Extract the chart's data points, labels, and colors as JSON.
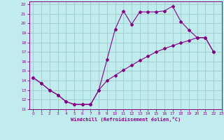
{
  "xlabel": "Windchill (Refroidissement éolien,°C)",
  "bg_color": "#c0eced",
  "grid_color": "#a0d0d0",
  "line_color": "#880088",
  "xlim": [
    -0.5,
    23
  ],
  "ylim": [
    11,
    22.3
  ],
  "xticks": [
    0,
    1,
    2,
    3,
    4,
    5,
    6,
    7,
    8,
    9,
    10,
    11,
    12,
    13,
    14,
    15,
    16,
    17,
    18,
    19,
    20,
    21,
    22,
    23
  ],
  "yticks": [
    11,
    12,
    13,
    14,
    15,
    16,
    17,
    18,
    19,
    20,
    21,
    22
  ],
  "line1_x": [
    0,
    1,
    2,
    3,
    4,
    5,
    6,
    7,
    8,
    9,
    10,
    11,
    12,
    13,
    14,
    15,
    16,
    17,
    18,
    19,
    20,
    21,
    22
  ],
  "line1_y": [
    14.3,
    13.7,
    13.0,
    12.5,
    11.8,
    11.5,
    11.5,
    11.5,
    13.0,
    16.2,
    19.4,
    21.3,
    19.9,
    21.2,
    21.2,
    21.2,
    21.3,
    21.8,
    20.2,
    19.3,
    18.5,
    18.5,
    17.0
  ],
  "line2_x": [
    0,
    1,
    2,
    3,
    4,
    5,
    6,
    7,
    8,
    9,
    10,
    11,
    12,
    13,
    14,
    15,
    16,
    17,
    18,
    19,
    20,
    21,
    22
  ],
  "line2_y": [
    14.3,
    13.7,
    13.0,
    12.5,
    11.8,
    11.5,
    11.5,
    11.5,
    13.0,
    14.0,
    14.55,
    15.1,
    15.6,
    16.1,
    16.55,
    17.0,
    17.35,
    17.65,
    17.95,
    18.2,
    18.5,
    18.5,
    17.0
  ]
}
